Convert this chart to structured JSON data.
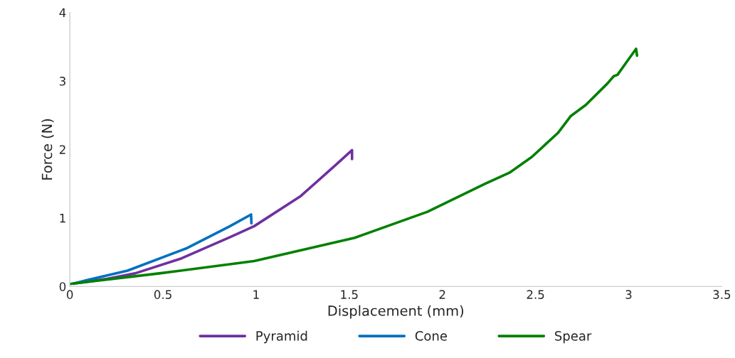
{
  "chart_data": {
    "type": "line",
    "xlabel": "Displacement (mm)",
    "ylabel": "Force (N)",
    "xlim": [
      0,
      3.5
    ],
    "ylim": [
      0,
      4
    ],
    "xticks": [
      0,
      0.5,
      1,
      1.5,
      2,
      2.5,
      3,
      3.5
    ],
    "yticks": [
      0,
      1,
      2,
      3,
      4
    ],
    "grid": false,
    "legend": "bottom",
    "marker": "none",
    "line_style": "solid",
    "series": [
      {
        "name": "Pyramid",
        "color": "#7030a0",
        "x": [
          0.02,
          0.04,
          0.2,
          0.35,
          0.6,
          0.86,
          0.99,
          1.24,
          1.43,
          1.515,
          1.515
        ],
        "values": [
          0.04,
          0.05,
          0.11,
          0.19,
          0.41,
          0.72,
          0.88,
          1.32,
          1.78,
          1.99,
          1.86
        ]
      },
      {
        "name": "Cone",
        "color": "#0070c0",
        "x": [
          0.02,
          0.09,
          0.2,
          0.31,
          0.63,
          0.86,
          0.973,
          0.975
        ],
        "values": [
          0.04,
          0.09,
          0.16,
          0.23,
          0.56,
          0.88,
          1.05,
          0.92
        ]
      },
      {
        "name": "Spear",
        "color": "#008000",
        "x": [
          0.0,
          0.48,
          0.99,
          1.53,
          1.92,
          2.23,
          2.36,
          2.48,
          2.62,
          2.69,
          2.77,
          2.885,
          2.92,
          2.94,
          2.99,
          3.04,
          3.045
        ],
        "values": [
          0.035,
          0.19,
          0.37,
          0.71,
          1.09,
          1.5,
          1.66,
          1.89,
          2.24,
          2.49,
          2.65,
          2.96,
          3.07,
          3.09,
          3.28,
          3.47,
          3.37
        ]
      }
    ]
  }
}
